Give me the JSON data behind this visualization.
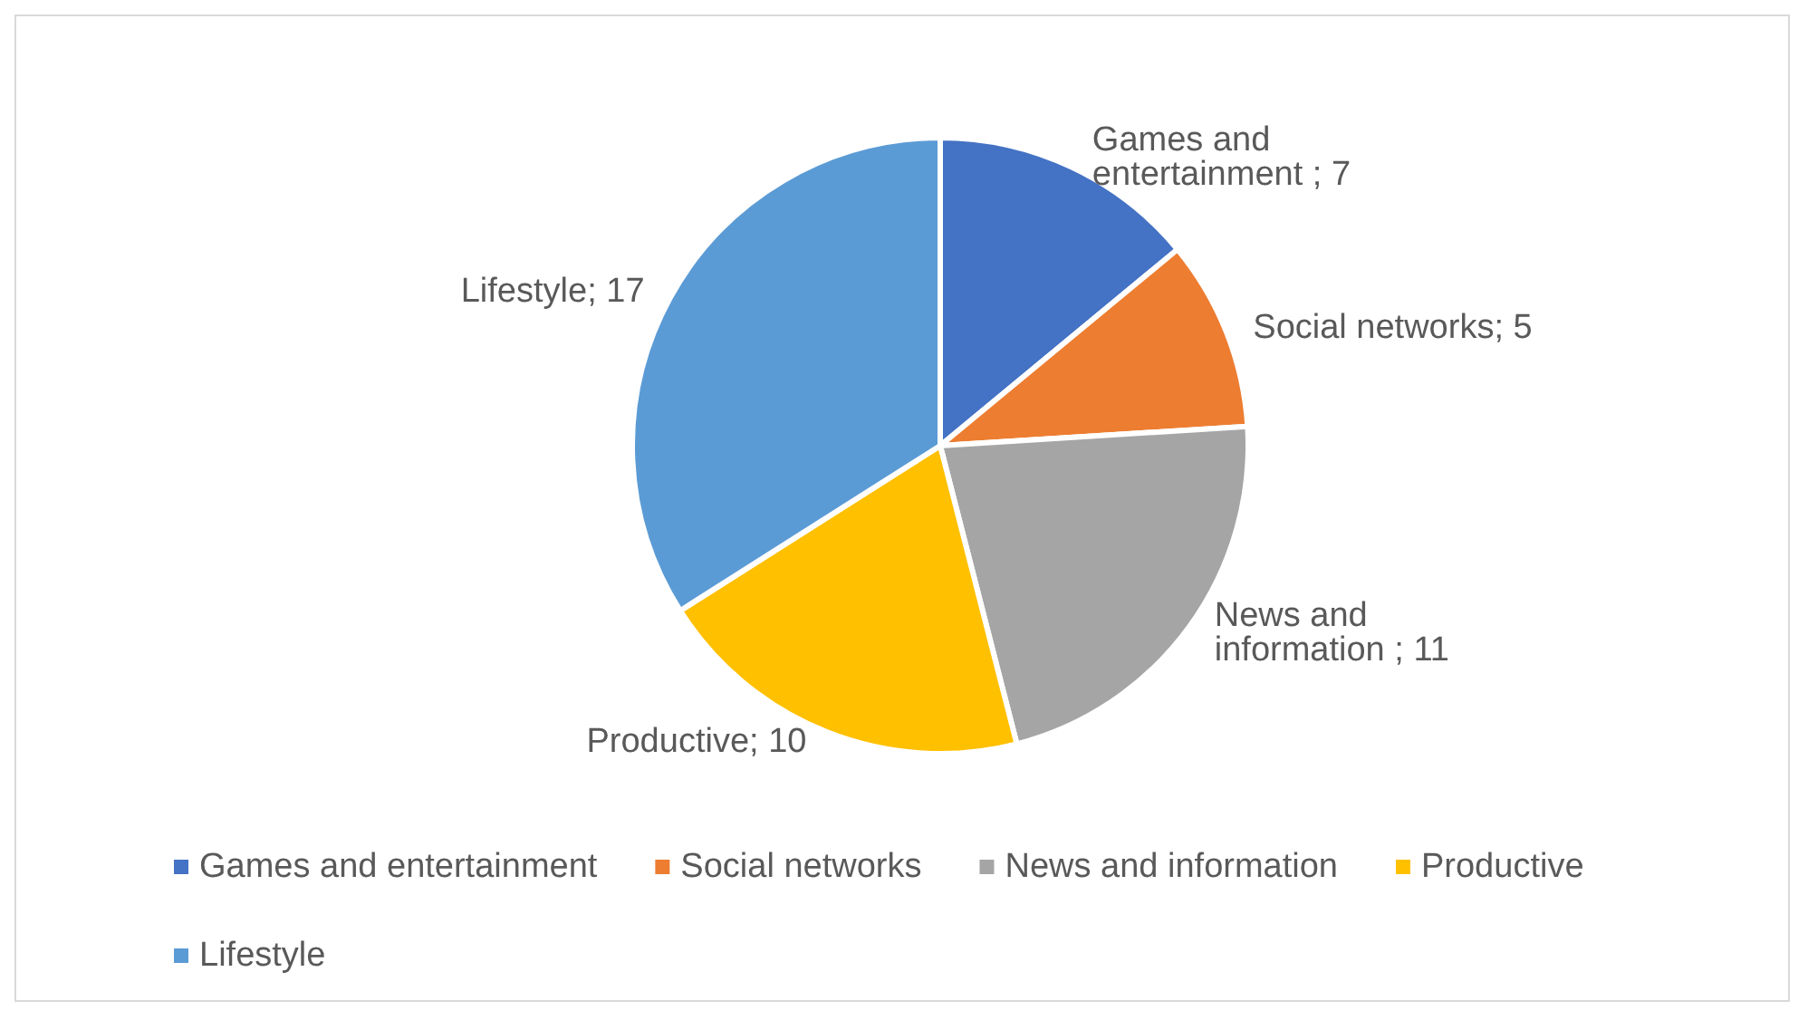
{
  "chart_data": {
    "type": "pie",
    "categories": [
      "Games and entertainment",
      "Social networks",
      "News and information",
      "Productive",
      "Lifestyle"
    ],
    "values": [
      7,
      5,
      11,
      10,
      17
    ],
    "colors": [
      "#4472c4",
      "#ed7d31",
      "#a5a5a5",
      "#ffc000",
      "#5b9bd5"
    ],
    "value_labels": [
      "Games and entertainment ; 7",
      "Social networks; 5",
      "News and information ; 11",
      "Productive; 10",
      "Lifestyle; 17"
    ],
    "legend": "bottom"
  }
}
